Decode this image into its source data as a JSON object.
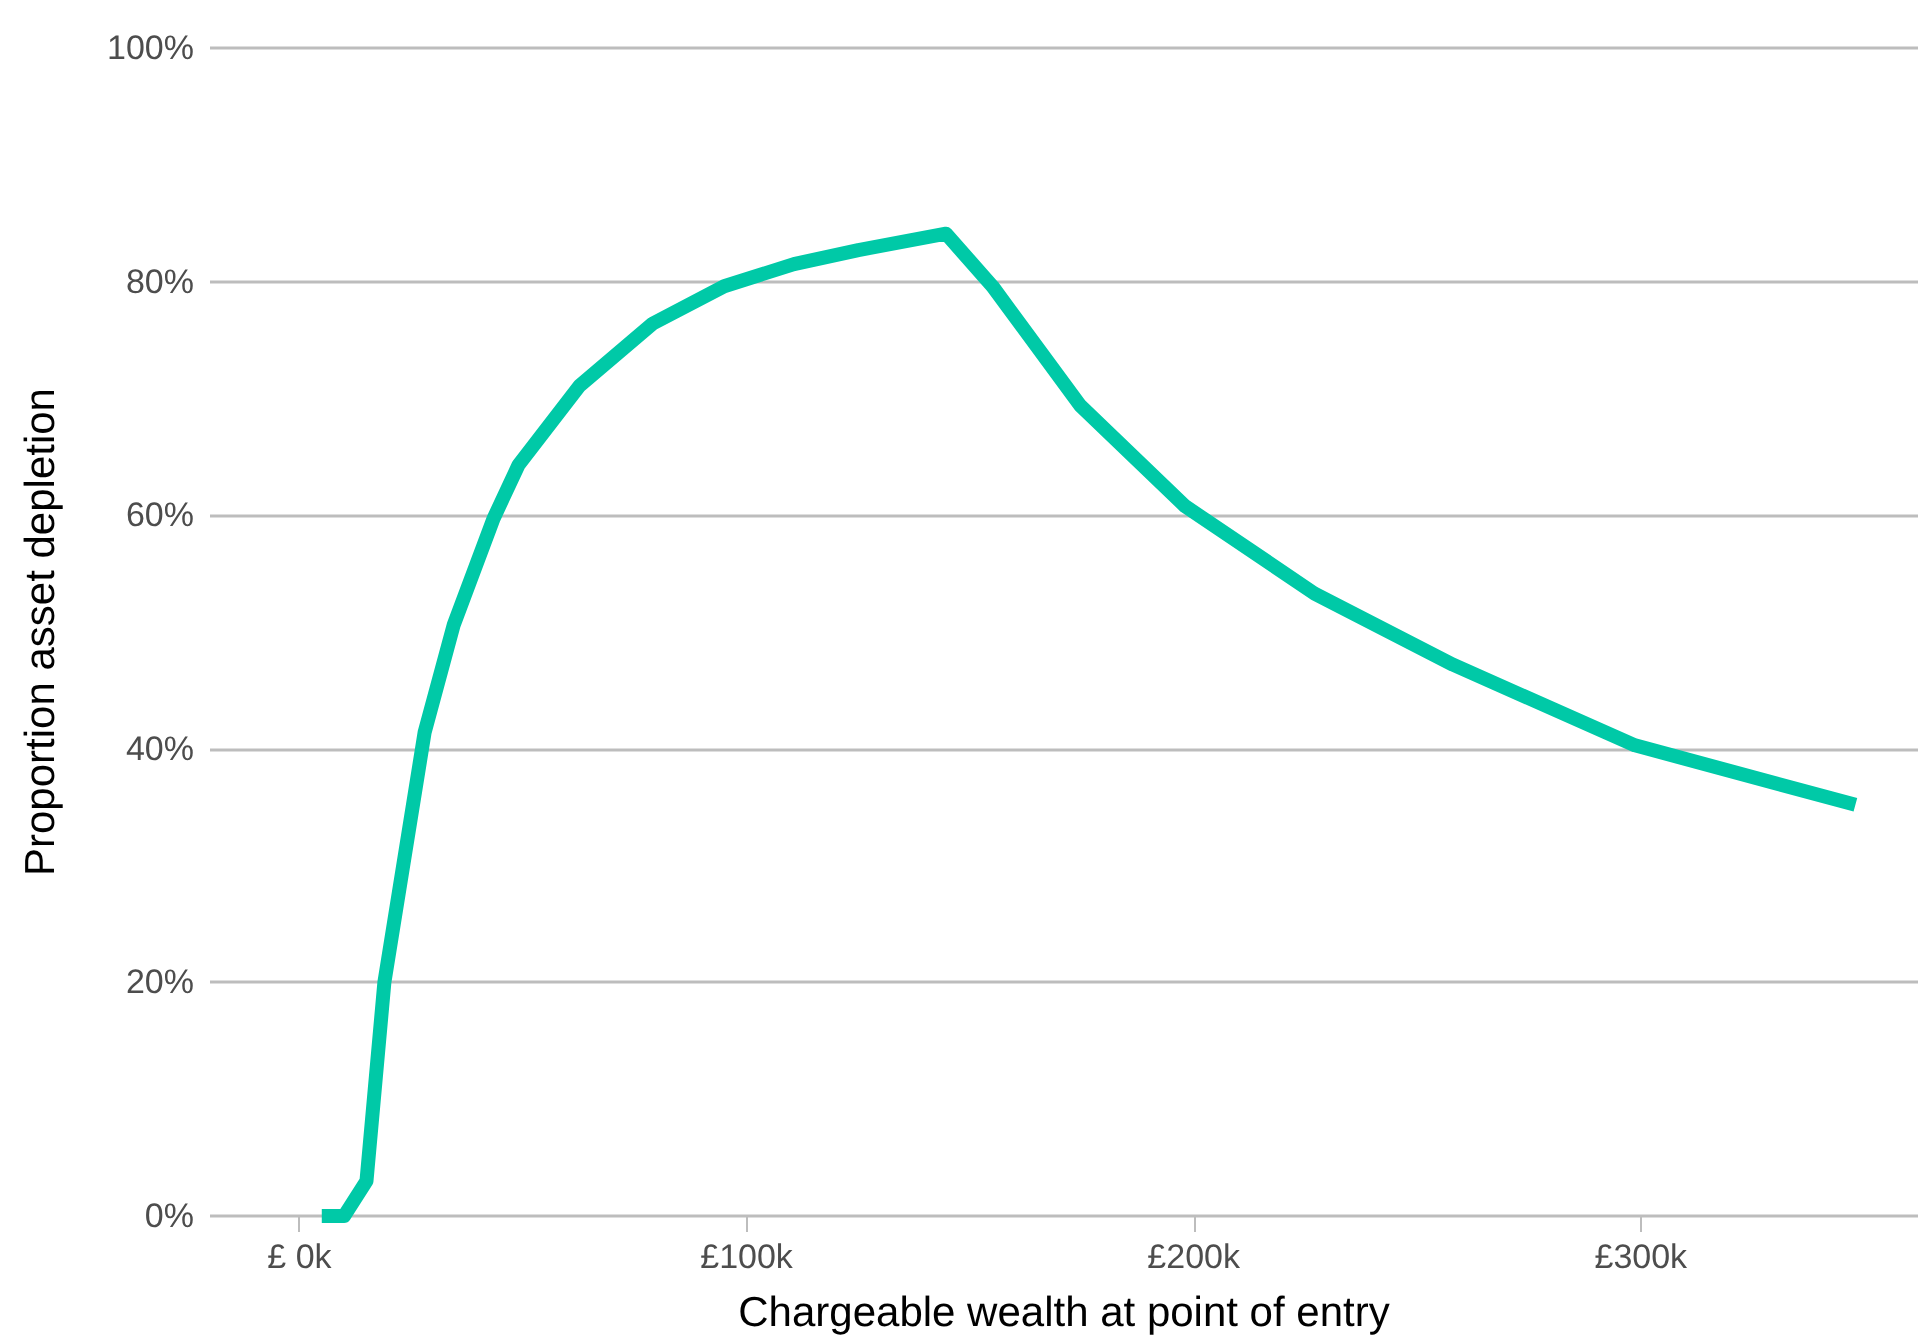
{
  "chart_data": {
    "type": "line",
    "xlabel": "Chargeable wealth at point of entry",
    "ylabel": "Proportion asset depletion",
    "x": [
      5,
      10,
      15,
      19,
      28,
      34.5,
      43.4,
      49,
      62.7,
      79,
      95,
      110.6,
      125,
      144.6,
      155,
      174.6,
      198,
      227,
      258,
      298.7,
      348
    ],
    "series": [
      {
        "color": "#00c9a7",
        "values": [
          0,
          0,
          3,
          20,
          41.4,
          50.6,
          59.7,
          64.3,
          71.1,
          76.4,
          79.6,
          81.5,
          82.7,
          84.1,
          79.6,
          69.4,
          60.8,
          53.3,
          47.2,
          40.3,
          35.2
        ]
      }
    ],
    "xlim": [
      -20,
      362
    ],
    "xticks": [
      {
        "value": 0,
        "label": "£ 0k"
      },
      {
        "value": 100,
        "label": "£100k"
      },
      {
        "value": 200,
        "label": "£200k"
      },
      {
        "value": 300,
        "label": "£300k"
      }
    ],
    "ylim": [
      0,
      100
    ],
    "yticks": [
      {
        "value": 0,
        "label": "0%"
      },
      {
        "value": 20,
        "label": "20%"
      },
      {
        "value": 40,
        "label": "40%"
      },
      {
        "value": 60,
        "label": "60%"
      },
      {
        "value": 80,
        "label": "80%"
      },
      {
        "value": 100,
        "label": "100%"
      }
    ],
    "grid": "y",
    "marker": "none",
    "line_style": "solid"
  }
}
